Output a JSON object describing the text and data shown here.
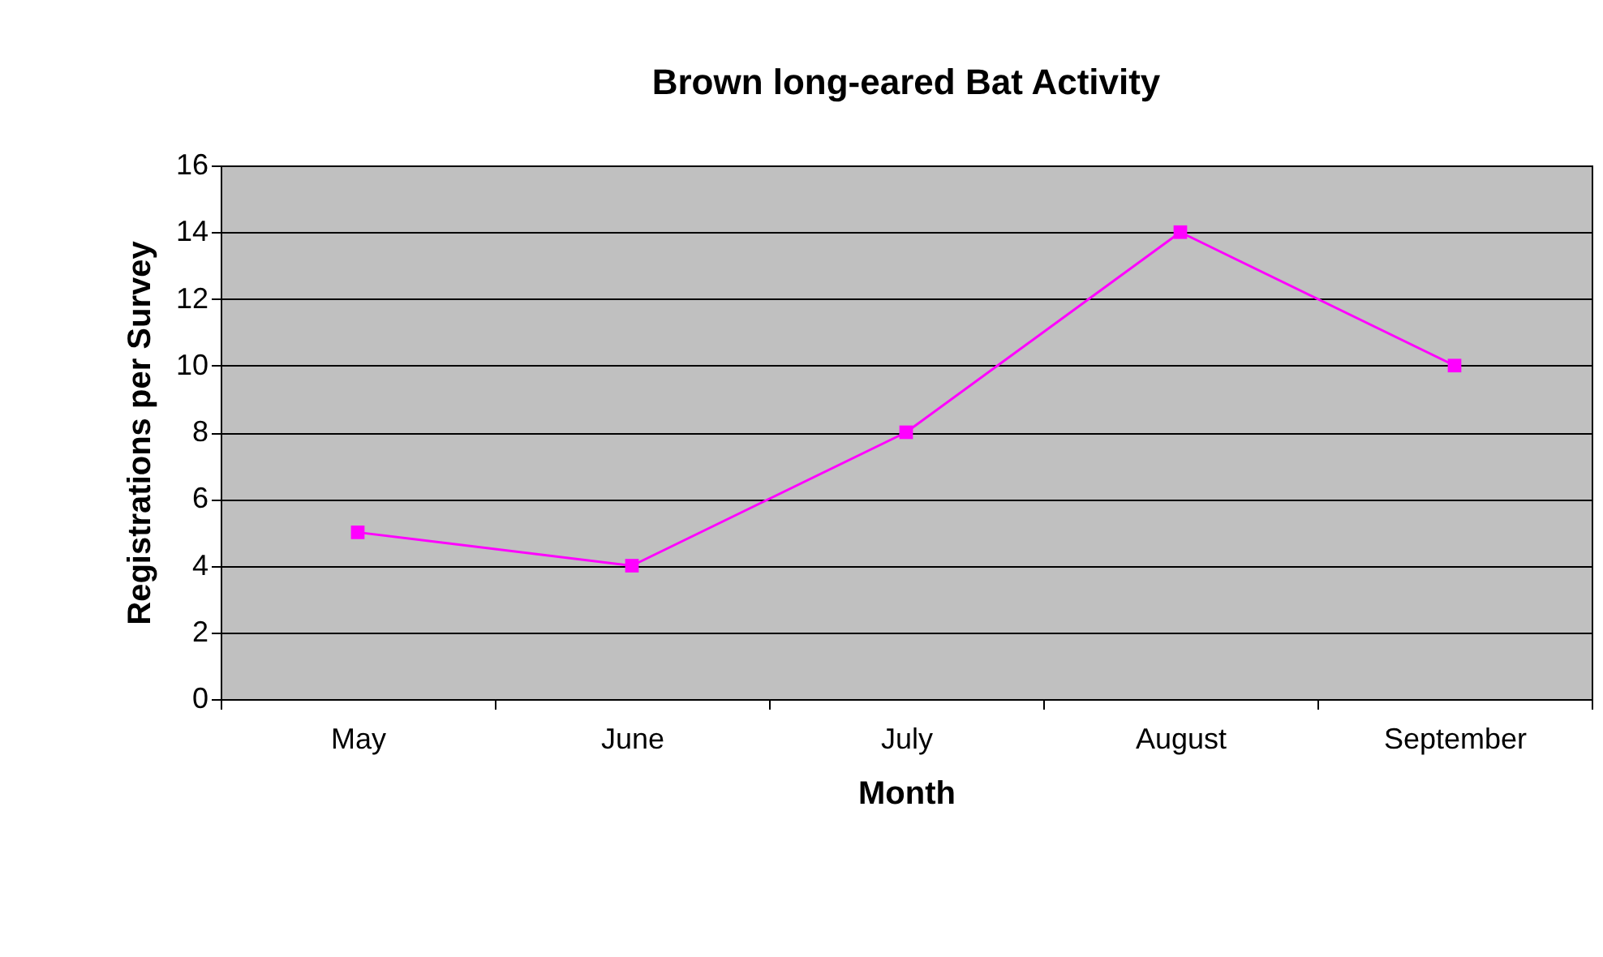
{
  "chart_data": {
    "type": "line",
    "title": "Brown long-eared Bat Activity",
    "xlabel": "Month",
    "ylabel": "Registrations per Survey",
    "categories": [
      "May",
      "June",
      "July",
      "August",
      "September"
    ],
    "series": [
      {
        "color": "#ff00ff",
        "values": [
          5,
          4,
          8,
          14,
          10
        ]
      }
    ],
    "ylim": [
      0,
      16
    ],
    "yticks": [
      0,
      2,
      4,
      6,
      8,
      10,
      12,
      14,
      16
    ],
    "grid": "y",
    "marker": "square",
    "line_style": "solid"
  }
}
